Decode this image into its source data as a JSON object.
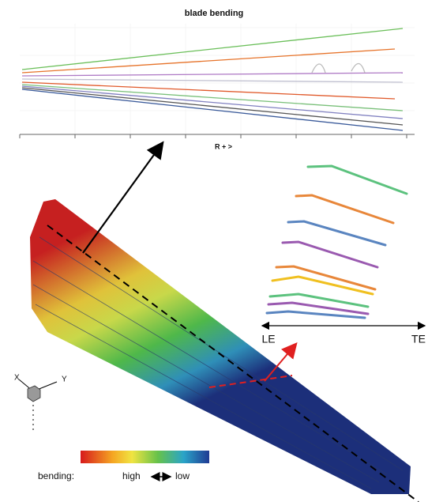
{
  "header": {
    "title": "blade bending",
    "x_axis_label": "R + >"
  },
  "section": {
    "le": "LE",
    "te": "TE"
  },
  "axes": {
    "x": "X",
    "y": "Y"
  },
  "legend": {
    "label": "bending:",
    "high": "high",
    "low": "low"
  }
}
